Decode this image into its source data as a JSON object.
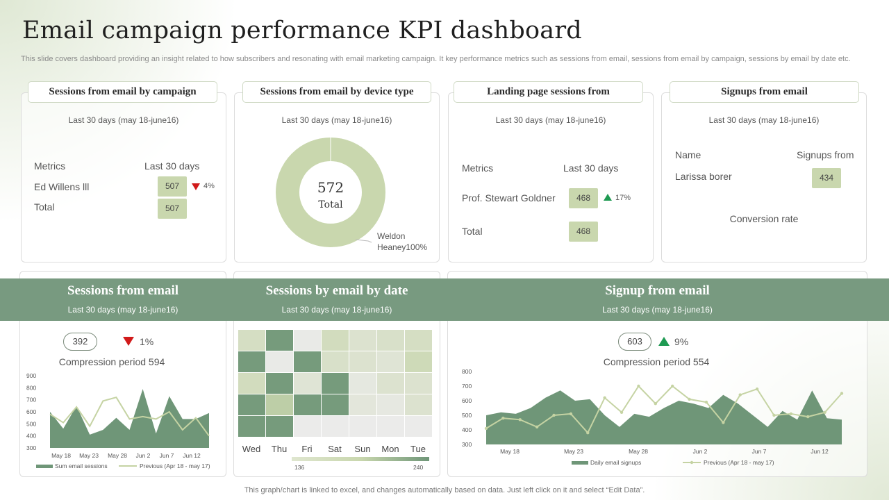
{
  "title": "Email campaign performance KPI dashboard",
  "subtitle": "This slide covers dashboard providing an insight related to how subscribers and resonating with email marketing campaign. It key performance metrics such as sessions from email, sessions from email by campaign, sessions by email by date etc.",
  "footer": "This graph/chart is linked to excel,  and changes automatically based on data. Just left click on it and select “Edit Data”.",
  "panels": {
    "campaign": {
      "title": "Sessions from email by campaign",
      "period": "Last 30 days (may 18-june16)",
      "col1": "Metrics",
      "col2": "Last 30 days",
      "row1_name": "Ed Willens lll",
      "row1_value": "507",
      "row1_change": "4%",
      "row2_name": "Total",
      "row2_value": "507"
    },
    "device": {
      "title": "Sessions from email by device type",
      "period": "Last 30 days (may 18-june16)",
      "center_value": "572",
      "center_label": "Total",
      "callout_name": "Weldon",
      "callout_value": "Heaney100%"
    },
    "landing": {
      "title": "Landing page sessions from",
      "period": "Last 30 days (may 18-june16)",
      "col1": "Metrics",
      "col2": "Last 30 days",
      "row1_name": "Prof. Stewart Goldner",
      "row1_value": "468",
      "row1_change": "17%",
      "row2_name": "Total",
      "row2_value": "468"
    },
    "signups": {
      "title": "Signups from email",
      "period": "Last 30 days (may 18-june16)",
      "col1": "Name",
      "col2": "Signups from",
      "row1_name": "Larissa borer",
      "row1_value": "434",
      "conversion_label": "Conversion rate"
    }
  },
  "bottom": {
    "sessions": {
      "title": "Sessions from email",
      "period": "Last 30 days (may 18-june16)",
      "pill": "392",
      "change": "1%",
      "compression": "Compression period 594"
    },
    "by_date": {
      "title": "Sessions by email by date",
      "period": "Last 30 days (may 18-june16)",
      "scale_min": "136",
      "scale_max": "240"
    },
    "signup": {
      "title": "Signup from email",
      "period": "Last 30 days (may 18-june16)",
      "pill": "603",
      "change": "9%",
      "compression": "Compression period 554"
    }
  },
  "colors": {
    "accent": "#789a80",
    "area": "#6f9678",
    "line": "#c5d3a3",
    "badge": "#c9d7ae",
    "down": "#d11a1a",
    "up": "#1e9a52"
  },
  "chart_data": [
    {
      "id": "device_donut",
      "type": "pie",
      "title": "Sessions from email by device type",
      "categories": [
        "Weldon Heaney"
      ],
      "values": [
        100
      ]
    },
    {
      "id": "sessions_from_email",
      "type": "area",
      "title": "Sessions from email",
      "ylim": [
        300,
        900
      ],
      "yticks": [
        "900",
        "800",
        "700",
        "600",
        "500",
        "400",
        "300"
      ],
      "xticks": [
        "May 18",
        "May 23",
        "May 28",
        "Jun 2",
        "Jun 7",
        "Jun 12"
      ],
      "series": [
        {
          "name": "Sum email sessions",
          "kind": "area",
          "values": [
            600,
            460,
            650,
            410,
            450,
            550,
            450,
            790,
            420,
            730,
            540,
            540,
            590
          ]
        },
        {
          "name": "Previous (Apr 18 - may 17)",
          "kind": "line",
          "values": [
            580,
            510,
            640,
            480,
            690,
            720,
            540,
            560,
            540,
            600,
            450,
            550,
            400
          ]
        }
      ]
    },
    {
      "id": "sessions_by_date",
      "type": "heatmap",
      "title": "Sessions by email by date",
      "xlabels": [
        "Wed",
        "Thu",
        "Fri",
        "Sat",
        "Sun",
        "Mon",
        "Tue"
      ],
      "scale": [
        136,
        240
      ],
      "rows": [
        [
          170,
          236,
          140,
          175,
          160,
          165,
          170
        ],
        [
          236,
          140,
          236,
          165,
          160,
          155,
          180
        ],
        [
          175,
          236,
          155,
          236,
          146,
          160,
          160
        ],
        [
          236,
          195,
          236,
          236,
          150,
          145,
          160
        ],
        [
          236,
          236,
          138,
          138,
          138,
          138,
          138
        ]
      ]
    },
    {
      "id": "signup_from_email",
      "type": "area",
      "title": "Signup from email",
      "ylim": [
        300,
        800
      ],
      "yticks": [
        "800",
        "700",
        "600",
        "500",
        "400",
        "300"
      ],
      "xticks": [
        "May 18",
        "May 23",
        "May 28",
        "Jun 2",
        "Jun 7",
        "Jun 12"
      ],
      "series": [
        {
          "name": "Daily email signups",
          "kind": "area",
          "values": [
            500,
            520,
            510,
            550,
            620,
            670,
            600,
            610,
            500,
            420,
            510,
            490,
            550,
            600,
            580,
            550,
            640,
            580,
            500,
            420,
            530,
            470,
            670,
            480,
            470
          ]
        },
        {
          "name": "Previous (Apr 18 - may 17)",
          "kind": "line",
          "values": [
            410,
            480,
            470,
            420,
            500,
            510,
            380,
            620,
            520,
            700,
            580,
            700,
            610,
            590,
            450,
            640,
            680,
            500,
            510,
            490,
            520,
            650
          ]
        }
      ]
    }
  ]
}
